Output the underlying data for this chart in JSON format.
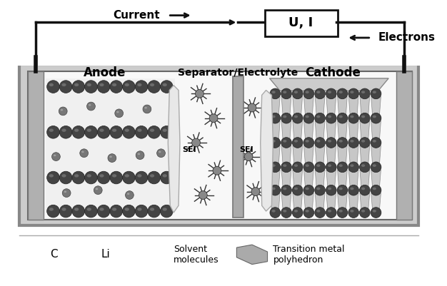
{
  "bg_color": "#ffffff",
  "current_label": "Current",
  "electrons_label": "Electrons",
  "ui_label": "U, I",
  "anode_label": "Anode",
  "cathode_label": "Cathode",
  "separator_label": "Separator/Electrolyte",
  "sei_label": "SEI",
  "legend_items": [
    "C",
    "Li",
    "Solvent\nmolecules",
    "Transition metal\npolyhedron"
  ],
  "colors": {
    "background": "#ffffff",
    "bath_fill": "#d0d0d0",
    "inner_fill": "#f8f8f8",
    "collector_gray": "#999999",
    "carbon_ball": "#444444",
    "carbon_highlight": "#aaaaaa",
    "lithium_ball": "#666666",
    "solvent_center": "#888888",
    "sei_fill": "#e8e8e8",
    "sep_gray": "#aaaaaa",
    "cathode_layer": "#888888",
    "cathode_poly": "#999999",
    "wire_color": "#111111",
    "text_color": "#000000"
  },
  "figsize": [
    6.26,
    4.01
  ],
  "dpi": 100
}
